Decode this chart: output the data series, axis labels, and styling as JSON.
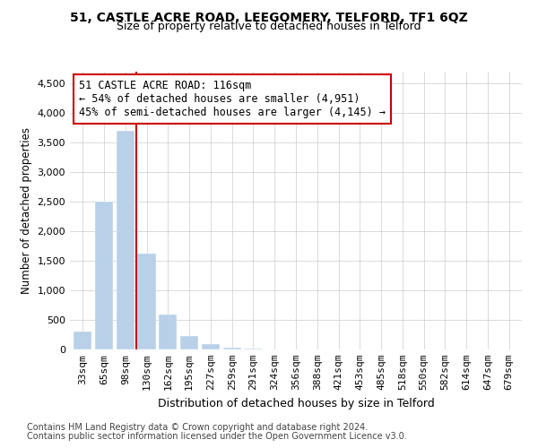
{
  "title": "51, CASTLE ACRE ROAD, LEEGOMERY, TELFORD, TF1 6QZ",
  "subtitle": "Size of property relative to detached houses in Telford",
  "xlabel": "Distribution of detached houses by size in Telford",
  "ylabel": "Number of detached properties",
  "annotation_line1": "51 CASTLE ACRE ROAD: 116sqm",
  "annotation_line2": "← 54% of detached houses are smaller (4,951)",
  "annotation_line3": "45% of semi-detached houses are larger (4,145) →",
  "footnote1": "Contains HM Land Registry data © Crown copyright and database right 2024.",
  "footnote2": "Contains public sector information licensed under the Open Government Licence v3.0.",
  "categories": [
    "33sqm",
    "65sqm",
    "98sqm",
    "130sqm",
    "162sqm",
    "195sqm",
    "227sqm",
    "259sqm",
    "291sqm",
    "324sqm",
    "356sqm",
    "388sqm",
    "421sqm",
    "453sqm",
    "485sqm",
    "518sqm",
    "550sqm",
    "582sqm",
    "614sqm",
    "647sqm",
    "679sqm"
  ],
  "values": [
    310,
    2500,
    3700,
    1620,
    590,
    220,
    90,
    35,
    15,
    7,
    4,
    3,
    2,
    2,
    1,
    1,
    1,
    0,
    0,
    0,
    0
  ],
  "bar_color": "#b8d0e8",
  "marker_color": "#cc0000",
  "annotation_box_edgecolor": "#cc0000",
  "ylim": [
    0,
    4700
  ],
  "yticks": [
    0,
    500,
    1000,
    1500,
    2000,
    2500,
    3000,
    3500,
    4000,
    4500
  ],
  "title_fontsize": 10,
  "subtitle_fontsize": 9,
  "xlabel_fontsize": 9,
  "ylabel_fontsize": 8.5,
  "tick_fontsize": 8,
  "annot_fontsize": 8.5,
  "footnote_fontsize": 7
}
